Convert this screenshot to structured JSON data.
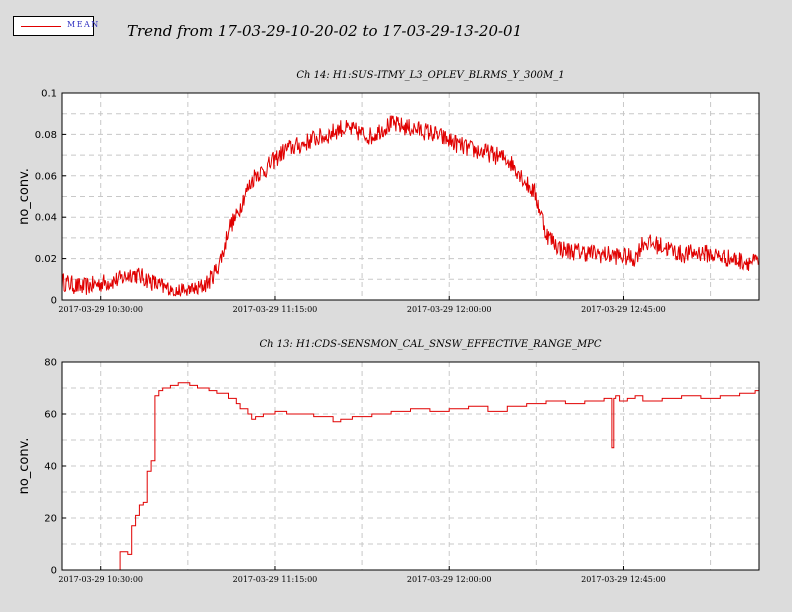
{
  "header": {
    "title": "Trend from 17-03-29-10-20-02 to 17-03-29-13-20-01",
    "legend_label": "MEAN"
  },
  "colors": {
    "background": "#dcdcdc",
    "series": "#e00000",
    "legend_text": "#3030c0",
    "grid": "#c8c8c8"
  },
  "chart_data": [
    {
      "type": "line",
      "title": "Ch 14: H1:SUS-ITMY_L3_OPLEV_BLRMS_Y_300M_1",
      "ylabel": "no_conv.",
      "xlabel": "",
      "ylim": [
        0,
        0.1
      ],
      "yticks": [
        0,
        0.02,
        0.04,
        0.06,
        0.08,
        0.1
      ],
      "ytick_labels": [
        "0",
        "0.02",
        "0.04",
        "0.06",
        "0.08",
        "0.1"
      ],
      "xlim_minutes": [
        0,
        180
      ],
      "xticks_minutes": [
        10,
        55,
        100,
        145
      ],
      "xtick_labels": [
        "2017-03-29 10:30:00",
        "2017-03-29 11:15:00",
        "2017-03-29 12:00:00",
        "2017-03-29 12:45:00"
      ],
      "grid": true,
      "legend": "top-left",
      "series": [
        {
          "name": "MEAN",
          "style": "noisy",
          "x": [
            0,
            5,
            10,
            15,
            18,
            22,
            26,
            30,
            35,
            38,
            40,
            42,
            43,
            45,
            47,
            50,
            52,
            55,
            58,
            62,
            65,
            68,
            70,
            72,
            75,
            78,
            80,
            82,
            85,
            90,
            95,
            100,
            105,
            110,
            115,
            118,
            120,
            122,
            123,
            124,
            125,
            128,
            130,
            135,
            140,
            145,
            148,
            150,
            155,
            160,
            165,
            170,
            175,
            180
          ],
          "y": [
            0.009,
            0.006,
            0.008,
            0.01,
            0.013,
            0.01,
            0.006,
            0.004,
            0.005,
            0.009,
            0.015,
            0.025,
            0.035,
            0.04,
            0.05,
            0.061,
            0.062,
            0.068,
            0.073,
            0.075,
            0.078,
            0.079,
            0.081,
            0.083,
            0.082,
            0.08,
            0.079,
            0.082,
            0.085,
            0.083,
            0.081,
            0.077,
            0.073,
            0.071,
            0.068,
            0.062,
            0.056,
            0.052,
            0.046,
            0.04,
            0.032,
            0.026,
            0.024,
            0.023,
            0.022,
            0.021,
            0.02,
            0.028,
            0.026,
            0.022,
            0.023,
            0.021,
            0.019,
            0.018
          ],
          "noise": 0.0045
        }
      ]
    },
    {
      "type": "line",
      "title": "Ch 13: H1:CDS-SENSMON_CAL_SNSW_EFFECTIVE_RANGE_MPC",
      "ylabel": "no_conv.",
      "xlabel": "",
      "ylim": [
        0,
        80
      ],
      "yticks": [
        0,
        20,
        40,
        60,
        80
      ],
      "ytick_labels": [
        "0",
        "20",
        "40",
        "60",
        "80"
      ],
      "xlim_minutes": [
        0,
        180
      ],
      "xticks_minutes": [
        10,
        55,
        100,
        145
      ],
      "xtick_labels": [
        "2017-03-29 10:30:00",
        "2017-03-29 11:15:00",
        "2017-03-29 12:00:00",
        "2017-03-29 12:45:00"
      ],
      "grid": true,
      "series": [
        {
          "name": "MEAN",
          "style": "step",
          "x": [
            14.5,
            15,
            17,
            18,
            19,
            20,
            21,
            22,
            23,
            24,
            25,
            26,
            28,
            30,
            33,
            35,
            38,
            40,
            43,
            45,
            46,
            48,
            49,
            50,
            52,
            55,
            58,
            60,
            65,
            70,
            72,
            75,
            80,
            85,
            90,
            95,
            100,
            105,
            110,
            115,
            120,
            125,
            130,
            135,
            140,
            142,
            142.5,
            143,
            144,
            146,
            148,
            150,
            155,
            160,
            165,
            170,
            175,
            179,
            180
          ],
          "y": [
            0,
            7,
            6,
            17,
            21,
            25,
            26,
            38,
            42,
            67,
            69,
            70,
            71,
            72,
            71,
            70,
            69,
            68,
            66,
            64,
            62,
            60,
            58,
            59,
            60,
            61,
            60,
            60,
            59,
            57,
            58,
            59,
            60,
            61,
            62,
            61,
            62,
            63,
            61,
            63,
            64,
            65,
            64,
            65,
            66,
            47,
            66,
            67,
            65,
            66,
            67,
            65,
            66,
            67,
            66,
            67,
            68,
            69,
            67
          ]
        }
      ]
    }
  ]
}
